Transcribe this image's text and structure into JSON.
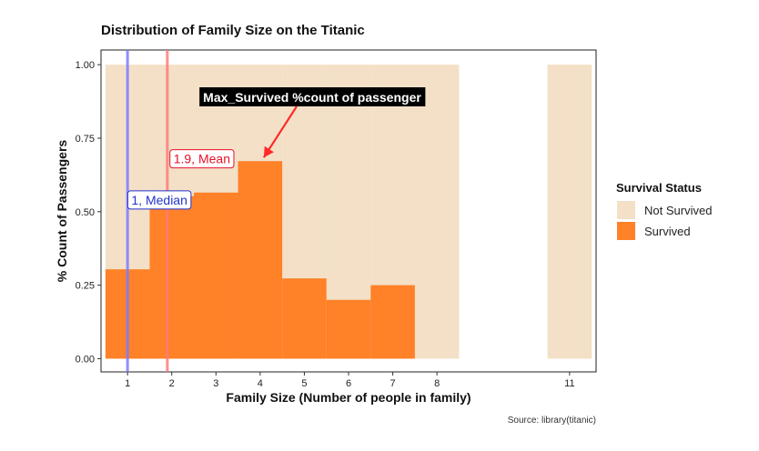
{
  "chart_data": {
    "type": "bar",
    "title": "Distribution of Family Size on the Titanic",
    "xlabel": "Family Size (Number of people in family)",
    "ylabel": "% Count of Passengers",
    "caption": "Source: library(titanic)",
    "x_ticks": [
      1,
      2,
      3,
      4,
      5,
      6,
      7,
      8,
      11
    ],
    "y_ticks": [
      "0.00",
      "0.25",
      "0.50",
      "0.75",
      "1.00"
    ],
    "xlim": [
      0.4,
      11.6
    ],
    "ylim": [
      -0.045,
      1.05
    ],
    "grid": false,
    "legend_position": "right",
    "legend": {
      "title": "Survival Status",
      "entries": [
        {
          "label": "Not Survived",
          "color": "#F3E0C6"
        },
        {
          "label": "Survived",
          "color": "#FF8128"
        }
      ]
    },
    "x": [
      1,
      2,
      3,
      4,
      5,
      6,
      7,
      8,
      11
    ],
    "series": [
      {
        "name": "Not Survived",
        "values": [
          1,
          1,
          1,
          1,
          1,
          1,
          1,
          1,
          1
        ]
      },
      {
        "name": "Survived",
        "values": [
          0.304,
          0.553,
          0.565,
          0.672,
          0.273,
          0.2,
          0.25,
          0,
          0
        ]
      }
    ],
    "reference_lines": [
      {
        "label": "1, Median",
        "x": 1,
        "color": "#7B7BFF",
        "text_color": "#2233CC"
      },
      {
        "label": "1.9, Mean",
        "x": 1.9,
        "color": "#FF7B7B",
        "text_color": "#E8102A"
      }
    ],
    "annotation": {
      "text": "Max_Survived %count of passenger",
      "target_x": 4,
      "target_y": 0.672,
      "arrow_color": "#FF2A2A"
    }
  }
}
